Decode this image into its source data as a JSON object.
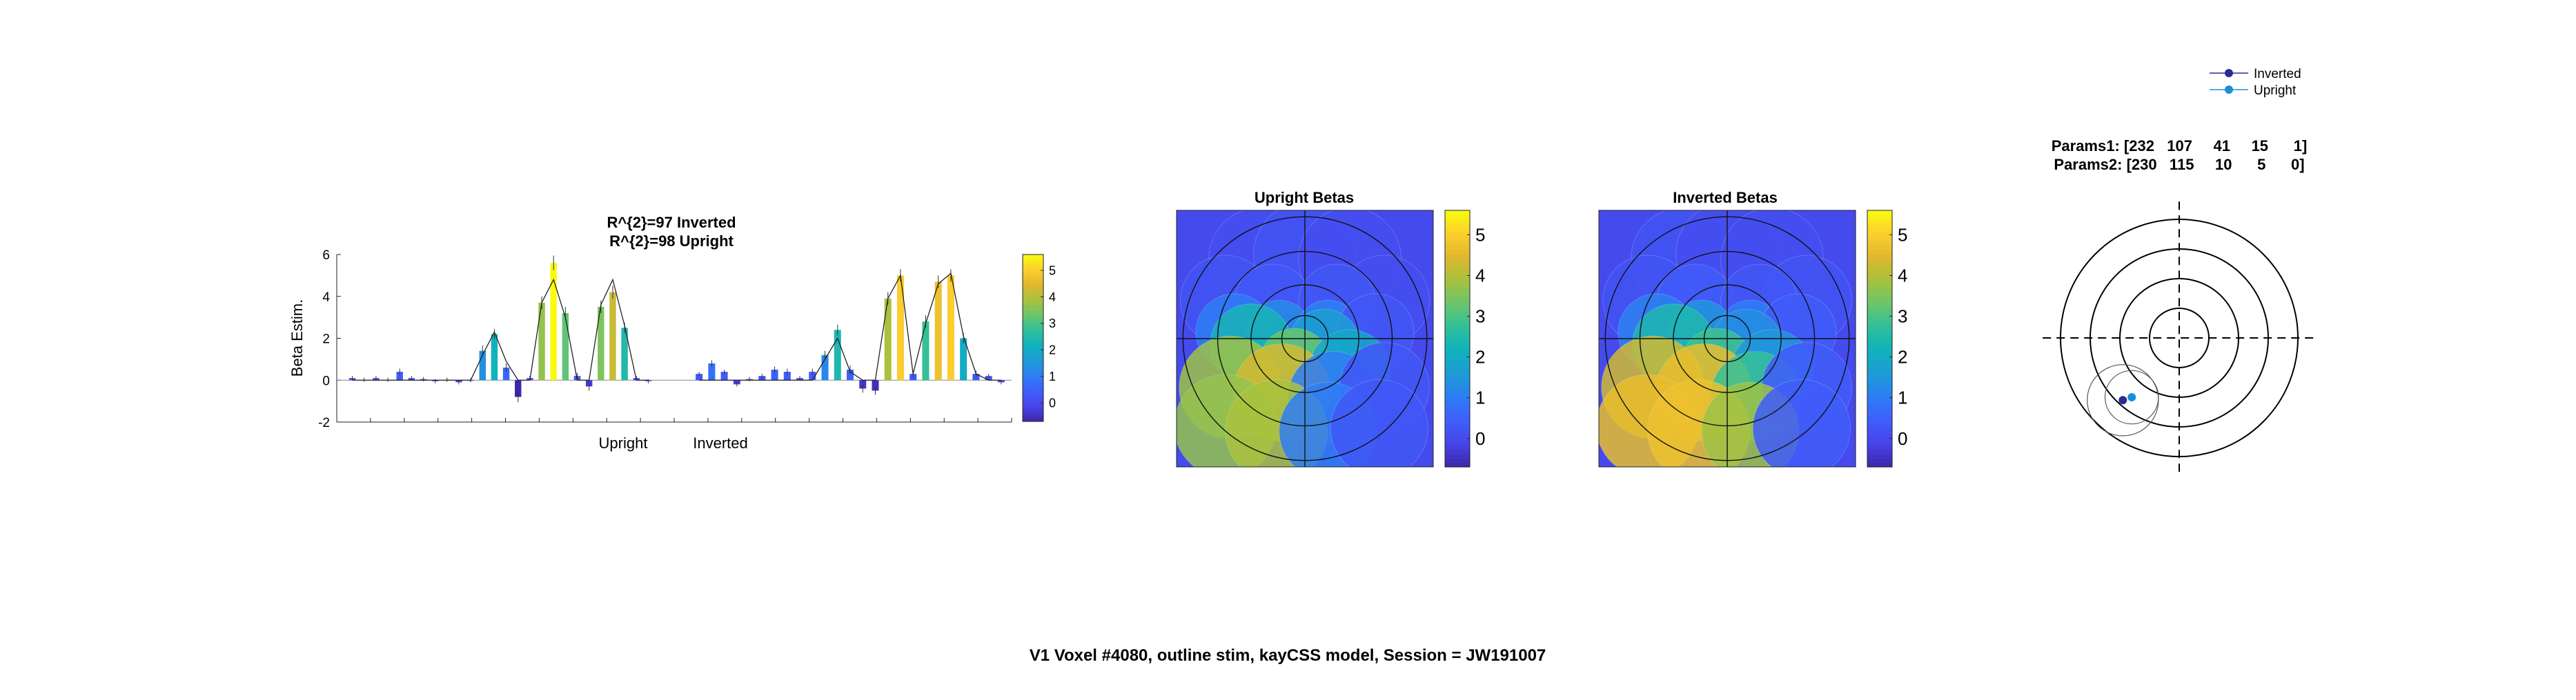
{
  "figure_title": "V1 Voxel #4080, outline stim, kayCSS model, Session = JW191007",
  "colormap": [
    "#3e26a8",
    "#4744e8",
    "#3f5efb",
    "#2d7df4",
    "#1e9bd6",
    "#10b1bd",
    "#2fbf9b",
    "#6ac56c",
    "#a7c23e",
    "#e0b72e",
    "#fcce2e",
    "#f9fb0e"
  ],
  "chart_data": [
    {
      "type": "bar",
      "title": "R^{2}=97 Inverted\nR^{2}=98 Upright",
      "title_lines": [
        "R^{2}=97 Inverted",
        "R^{2}=98 Upright"
      ],
      "ylabel": "Beta Estim.",
      "ylim": [
        -2,
        6
      ],
      "yticks": [
        -2,
        0,
        2,
        4,
        6
      ],
      "group_labels": [
        "Upright",
        "Inverted"
      ],
      "colorbar": {
        "ticks": [
          0,
          1,
          2,
          3,
          4,
          5
        ],
        "clim": [
          -0.7,
          5.6
        ]
      },
      "series": [
        {
          "name": "Upright",
          "values": [
            0.1,
            0.02,
            0.1,
            0.02,
            0.4,
            0.1,
            0.05,
            -0.05,
            0.02,
            -0.1,
            0.0,
            1.4,
            2.2,
            0.6,
            -0.8,
            0.1,
            3.7,
            5.6,
            3.2,
            0.2,
            -0.3,
            3.5,
            4.2,
            2.5,
            0.1,
            -0.05
          ],
          "errors": [
            0.1,
            0.1,
            0.1,
            0.1,
            0.15,
            0.1,
            0.1,
            0.1,
            0.1,
            0.1,
            0.1,
            0.25,
            0.25,
            0.2,
            0.25,
            0.1,
            0.3,
            0.35,
            0.3,
            0.15,
            0.2,
            0.3,
            0.3,
            0.25,
            0.1,
            0.1
          ],
          "fit": [
            0.0,
            0.0,
            0.0,
            0.0,
            0.0,
            0.0,
            0.0,
            0.0,
            0.0,
            0.0,
            0.0,
            1.2,
            2.3,
            0.9,
            0.0,
            0.0,
            3.7,
            4.8,
            3.0,
            0.0,
            0.0,
            3.6,
            4.8,
            2.6,
            0.0,
            0.0
          ]
        },
        {
          "name": "Inverted",
          "values": [
            0.3,
            0.8,
            0.4,
            -0.2,
            0.05,
            0.2,
            0.5,
            0.4,
            0.1,
            0.4,
            1.2,
            2.4,
            0.5,
            -0.4,
            -0.5,
            3.9,
            5.0,
            0.3,
            2.8,
            4.7,
            5.0,
            2.0,
            0.3,
            0.2,
            -0.1
          ],
          "errors": [
            0.1,
            0.15,
            0.1,
            0.1,
            0.1,
            0.1,
            0.15,
            0.15,
            0.1,
            0.15,
            0.2,
            0.25,
            0.2,
            0.2,
            0.2,
            0.3,
            0.3,
            0.15,
            0.3,
            0.3,
            0.3,
            0.25,
            0.15,
            0.1,
            0.1
          ],
          "fit": [
            0.0,
            0.0,
            0.0,
            0.0,
            0.0,
            0.0,
            0.0,
            0.0,
            0.0,
            0.0,
            1.0,
            2.0,
            0.4,
            0.0,
            0.0,
            3.9,
            5.0,
            0.3,
            2.7,
            4.6,
            5.1,
            2.1,
            0.3,
            0.0,
            0.0
          ]
        }
      ]
    },
    {
      "type": "heatmap",
      "title": "Upright Betas",
      "colorbar": {
        "ticks": [
          0,
          1,
          2,
          3,
          4,
          5
        ],
        "clim": [
          -0.7,
          5.6
        ]
      },
      "disks": [
        {
          "x": -0.35,
          "y": 0.62,
          "r": 0.4,
          "value": 0.1
        },
        {
          "x": 0.0,
          "y": 0.66,
          "r": 0.4,
          "value": 0.2
        },
        {
          "x": 0.35,
          "y": 0.62,
          "r": 0.4,
          "value": 0.1
        },
        {
          "x": -0.62,
          "y": 0.3,
          "r": 0.35,
          "value": 0.2
        },
        {
          "x": 0.62,
          "y": 0.3,
          "r": 0.35,
          "value": 0.1
        },
        {
          "x": -0.25,
          "y": 0.28,
          "r": 0.3,
          "value": 0.3
        },
        {
          "x": 0.25,
          "y": 0.28,
          "r": 0.3,
          "value": 0.3
        },
        {
          "x": -0.55,
          "y": 0.05,
          "r": 0.3,
          "value": 1.0
        },
        {
          "x": -0.2,
          "y": 0.05,
          "r": 0.25,
          "value": 1.3
        },
        {
          "x": 0.18,
          "y": 0.05,
          "r": 0.25,
          "value": 1.1
        },
        {
          "x": 0.55,
          "y": 0.05,
          "r": 0.3,
          "value": 0.3
        },
        {
          "x": -0.42,
          "y": -0.05,
          "r": 0.32,
          "value": 2.3
        },
        {
          "x": 0.15,
          "y": -0.05,
          "r": 0.28,
          "value": 1.7
        },
        {
          "x": -0.08,
          "y": -0.2,
          "r": 0.28,
          "value": 3.3
        },
        {
          "x": 0.35,
          "y": -0.25,
          "r": 0.32,
          "value": 1.9
        },
        {
          "x": -0.58,
          "y": -0.38,
          "r": 0.4,
          "value": 3.8
        },
        {
          "x": -0.18,
          "y": -0.42,
          "r": 0.38,
          "value": 4.3
        },
        {
          "x": 0.22,
          "y": -0.45,
          "r": 0.35,
          "value": 1.0
        },
        {
          "x": 0.62,
          "y": -0.38,
          "r": 0.35,
          "value": 0.3
        },
        {
          "x": -0.62,
          "y": -0.68,
          "r": 0.4,
          "value": 3.7
        },
        {
          "x": -0.22,
          "y": -0.72,
          "r": 0.4,
          "value": 3.9
        },
        {
          "x": 0.18,
          "y": -0.72,
          "r": 0.38,
          "value": 1.0
        },
        {
          "x": 0.58,
          "y": -0.7,
          "r": 0.38,
          "value": 0.3
        }
      ]
    },
    {
      "type": "heatmap",
      "title": "Inverted Betas",
      "colorbar": {
        "ticks": [
          0,
          1,
          2,
          3,
          4,
          5
        ],
        "clim": [
          -0.7,
          5.6
        ]
      },
      "disks": [
        {
          "x": -0.35,
          "y": 0.62,
          "r": 0.4,
          "value": 0.2
        },
        {
          "x": 0.0,
          "y": 0.66,
          "r": 0.4,
          "value": 0.1
        },
        {
          "x": 0.35,
          "y": 0.62,
          "r": 0.4,
          "value": 0.1
        },
        {
          "x": -0.62,
          "y": 0.3,
          "r": 0.35,
          "value": 0.2
        },
        {
          "x": 0.62,
          "y": 0.3,
          "r": 0.35,
          "value": 0.2
        },
        {
          "x": -0.25,
          "y": 0.28,
          "r": 0.3,
          "value": 0.4
        },
        {
          "x": 0.25,
          "y": 0.28,
          "r": 0.3,
          "value": 0.3
        },
        {
          "x": -0.55,
          "y": 0.05,
          "r": 0.3,
          "value": 1.1
        },
        {
          "x": -0.2,
          "y": 0.05,
          "r": 0.25,
          "value": 1.5
        },
        {
          "x": 0.18,
          "y": 0.05,
          "r": 0.25,
          "value": 1.0
        },
        {
          "x": 0.55,
          "y": 0.05,
          "r": 0.3,
          "value": 0.4
        },
        {
          "x": -0.42,
          "y": -0.05,
          "r": 0.32,
          "value": 2.4
        },
        {
          "x": 0.15,
          "y": -0.05,
          "r": 0.28,
          "value": 1.4
        },
        {
          "x": -0.08,
          "y": -0.2,
          "r": 0.28,
          "value": 2.9
        },
        {
          "x": 0.35,
          "y": -0.25,
          "r": 0.32,
          "value": 1.5
        },
        {
          "x": -0.58,
          "y": -0.38,
          "r": 0.4,
          "value": 4.3
        },
        {
          "x": -0.18,
          "y": -0.42,
          "r": 0.38,
          "value": 4.6
        },
        {
          "x": 0.22,
          "y": -0.45,
          "r": 0.35,
          "value": 2.8
        },
        {
          "x": 0.62,
          "y": -0.38,
          "r": 0.35,
          "value": 0.4
        },
        {
          "x": -0.62,
          "y": -0.68,
          "r": 0.4,
          "value": 4.6
        },
        {
          "x": -0.22,
          "y": -0.72,
          "r": 0.4,
          "value": 4.7
        },
        {
          "x": 0.18,
          "y": -0.72,
          "r": 0.38,
          "value": 3.8
        },
        {
          "x": 0.58,
          "y": -0.7,
          "r": 0.38,
          "value": 0.4
        }
      ]
    },
    {
      "type": "scatter",
      "title_lines": [
        "Params1: [232   107     41     15      1]",
        "Params2: [230   115     10      5      0]"
      ],
      "legend": {
        "location": "top-right",
        "entries": [
          {
            "name": "Inverted",
            "color": "#2b2b91"
          },
          {
            "name": "Upright",
            "color": "#1b8fd6"
          }
        ]
      },
      "rings": [
        1,
        2,
        3,
        4
      ],
      "xlim": [
        -5,
        5
      ],
      "ylim": [
        -5,
        5
      ],
      "points": [
        {
          "series": "Inverted",
          "x": -1.9,
          "y": -2.1,
          "r": 1.2,
          "color": "#2b2b91"
        },
        {
          "series": "Upright",
          "x": -1.6,
          "y": -2.0,
          "r": 0.9,
          "color": "#1b8fd6"
        }
      ]
    }
  ]
}
